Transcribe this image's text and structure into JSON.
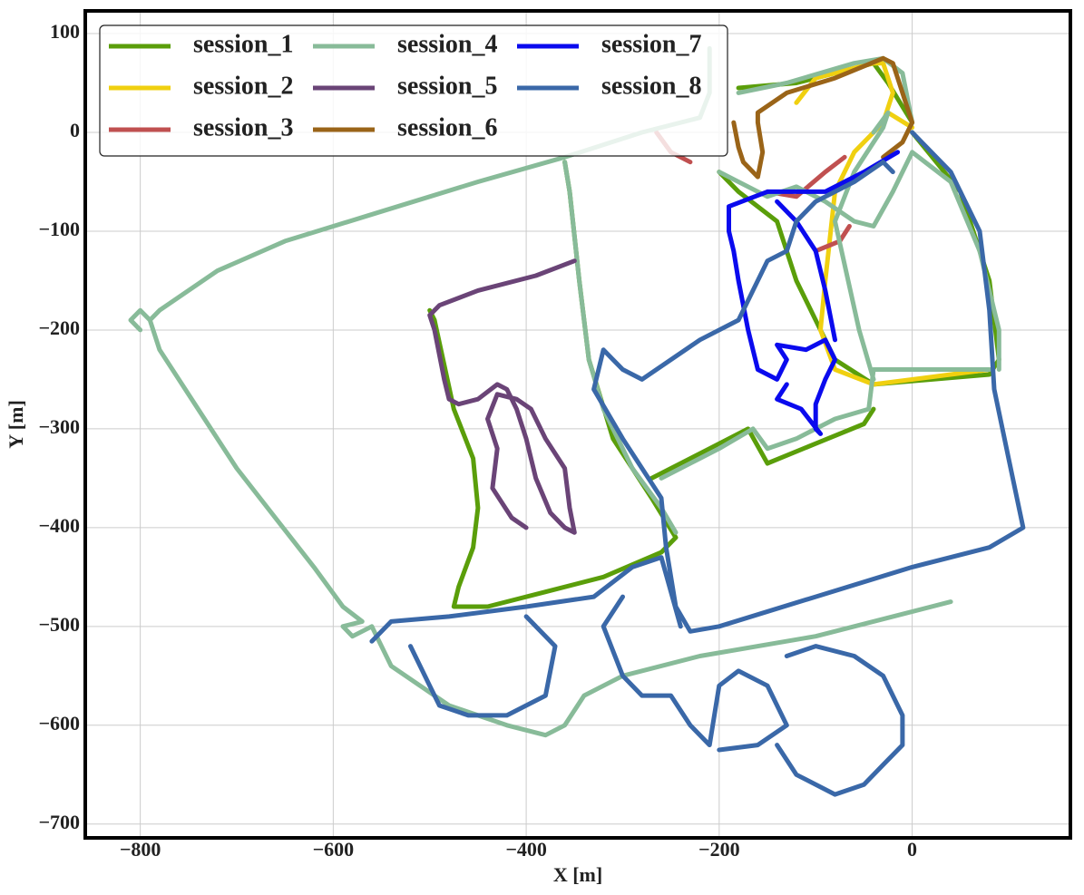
{
  "chart_data": {
    "type": "line",
    "xlabel": "X [m]",
    "ylabel": "Y [m]",
    "xlim": [
      -857,
      164
    ],
    "ylim": [
      -714,
      123
    ],
    "xticks": [
      {
        "value": -800,
        "label": "−800"
      },
      {
        "value": -600,
        "label": "−600"
      },
      {
        "value": -400,
        "label": "−400"
      },
      {
        "value": -200,
        "label": "−200"
      },
      0
    ],
    "yticks": [
      100,
      0,
      {
        "value": -100,
        "label": "−100"
      },
      {
        "value": -200,
        "label": "−200"
      },
      {
        "value": -300,
        "label": "−300"
      },
      {
        "value": -400,
        "label": "−400"
      },
      {
        "value": -500,
        "label": "−500"
      },
      {
        "value": -600,
        "label": "−600"
      },
      {
        "value": -700,
        "label": "−700"
      }
    ],
    "grid": true,
    "legend": "upper left",
    "series": [
      {
        "name": "session_1",
        "color": "#5a9e0a",
        "x": [
          -500,
          -495,
          -475,
          -455,
          -450,
          -455,
          -470,
          -475,
          -440,
          -380,
          -320,
          -260,
          -245,
          -270,
          -310,
          -335,
          -345,
          -355,
          -360,
          null,
          -270,
          -210,
          -170,
          -150,
          -100,
          -50,
          -40,
          null,
          0,
          50,
          80,
          90,
          80,
          -40,
          -80,
          -120,
          -140,
          -180,
          -200,
          null,
          -180,
          -120,
          -40,
          -25,
          0
        ],
        "values": [
          -180,
          -190,
          -280,
          -330,
          -380,
          -420,
          -460,
          -480,
          -480,
          -465,
          -450,
          -425,
          -410,
          -370,
          -310,
          -230,
          -150,
          -60,
          -30,
          null,
          -350,
          -320,
          -300,
          -335,
          -315,
          -295,
          -280,
          null,
          0,
          -60,
          -150,
          -230,
          -245,
          -255,
          -230,
          -150,
          -90,
          -60,
          -40,
          null,
          45,
          50,
          70,
          50,
          10
        ]
      },
      {
        "name": "session_2",
        "color": "#f0d010",
        "x": [
          -120,
          -100,
          -40,
          -30,
          -20,
          -30,
          -60,
          -80,
          -90,
          -95,
          -80,
          -40,
          80,
          null,
          -25,
          0
        ],
        "values": [
          30,
          55,
          70,
          70,
          40,
          10,
          -20,
          -60,
          -150,
          -200,
          -240,
          -255,
          -240,
          null,
          20,
          5
        ]
      },
      {
        "name": "session_3",
        "color": "#c05050",
        "x": [
          -150,
          -120,
          -90,
          -70,
          null,
          -265,
          -250,
          -230,
          null,
          -100,
          -75,
          -65
        ],
        "values": [
          -60,
          -65,
          -40,
          -25,
          null,
          0,
          -20,
          -30,
          null,
          -120,
          -110,
          -95
        ]
      },
      {
        "name": "session_4",
        "color": "#88bb99",
        "x": [
          -800,
          -810,
          -800,
          -790,
          -780,
          -720,
          -650,
          -550,
          -450,
          -360,
          -280,
          -220,
          -210,
          -210,
          null,
          -790,
          -780,
          -740,
          -700,
          -660,
          -620,
          -590,
          -570,
          -590,
          -580,
          -560,
          -540,
          -480,
          -420,
          -380,
          -360,
          -340,
          -300,
          -220,
          -100,
          -20,
          40,
          null,
          -360,
          -355,
          -345,
          -335,
          -320,
          -290,
          -260,
          -245,
          null,
          -260,
          -200,
          -165,
          -150,
          -120,
          -80,
          -45,
          -40,
          -20,
          80,
          null,
          -200,
          -150,
          -120,
          -90,
          -60,
          -40,
          -20,
          0,
          40,
          70,
          90,
          90,
          null,
          -180,
          -130,
          -60,
          -30,
          -10,
          0,
          null,
          -40,
          -55,
          -80,
          -60,
          -30,
          -25,
          -40
        ],
        "values": [
          -200,
          -190,
          -180,
          -190,
          -180,
          -140,
          -110,
          -80,
          -50,
          -25,
          0,
          15,
          40,
          85,
          null,
          -190,
          -220,
          -280,
          -340,
          -390,
          -440,
          -480,
          -495,
          -500,
          -510,
          -500,
          -540,
          -580,
          -600,
          -610,
          -600,
          -570,
          -550,
          -530,
          -510,
          -490,
          -475,
          null,
          -30,
          -60,
          -150,
          -230,
          -280,
          -340,
          -380,
          -405,
          null,
          -350,
          -320,
          -300,
          -320,
          -310,
          -290,
          -280,
          -240,
          -240,
          -240,
          null,
          -40,
          -65,
          -55,
          -70,
          -90,
          -95,
          -60,
          -20,
          -50,
          -120,
          -200,
          -240,
          null,
          40,
          50,
          70,
          75,
          60,
          10,
          null,
          -250,
          -200,
          -90,
          -40,
          5,
          20,
          0
        ]
      },
      {
        "name": "session_5",
        "color": "#6a4477",
        "x": [
          -350,
          -390,
          -450,
          -490,
          -500,
          -495,
          -485,
          -480,
          -470,
          -450,
          -430,
          -420,
          -410,
          -400,
          -390,
          -375,
          -360,
          -350,
          -355,
          -360,
          -380,
          -395,
          -410,
          -430,
          -440,
          -430,
          -435,
          -415,
          -400
        ],
        "values": [
          -130,
          -145,
          -160,
          -175,
          -185,
          -200,
          -250,
          -270,
          -275,
          -270,
          -255,
          -260,
          -280,
          -310,
          -350,
          -385,
          -400,
          -405,
          -380,
          -340,
          -310,
          -280,
          -270,
          -265,
          -290,
          -320,
          -360,
          -390,
          -400
        ]
      },
      {
        "name": "session_6",
        "color": "#9a6418",
        "x": [
          -185,
          -180,
          -175,
          -160,
          -155,
          -160,
          -160,
          -130,
          -80,
          -30,
          -20,
          -10,
          0,
          -10,
          -30
        ],
        "values": [
          10,
          -15,
          -30,
          -45,
          -20,
          10,
          20,
          40,
          55,
          75,
          70,
          40,
          10,
          -10,
          -25
        ]
      },
      {
        "name": "session_7",
        "color": "#0a0aee",
        "x": [
          -15,
          -50,
          -90,
          -120,
          -150,
          -190,
          -190,
          -185,
          -180,
          -170,
          -160,
          -140,
          -130,
          -140,
          -110,
          -90,
          -80,
          -90,
          -100,
          -100,
          -95,
          -115,
          -140,
          -130,
          null,
          -140,
          -120,
          -100,
          -90,
          -80
        ],
        "values": [
          -20,
          -40,
          -60,
          -60,
          -60,
          -75,
          -100,
          -120,
          -150,
          -200,
          -240,
          -250,
          -230,
          -215,
          -220,
          -210,
          -230,
          -250,
          -275,
          -300,
          -305,
          -280,
          -270,
          -255,
          null,
          -70,
          -90,
          -120,
          -160,
          -210
        ]
      },
      {
        "name": "session_8",
        "color": "#3a68a8",
        "x": [
          0,
          40,
          70,
          80,
          85,
          100,
          115,
          80,
          0,
          -100,
          -200,
          -230,
          -245,
          -255,
          -260,
          -300,
          -330,
          -320,
          -310,
          -300,
          -280,
          -220,
          -180,
          -170,
          -150,
          -130,
          -120,
          -100,
          -60,
          -30,
          -20,
          null,
          -560,
          -540,
          -480,
          -400,
          -330,
          -290,
          -260,
          -240,
          null,
          -300,
          -320,
          -300,
          -280,
          -250,
          -230,
          -210,
          -200,
          -180,
          -150,
          -130,
          -160,
          -200,
          null,
          -140,
          -120,
          -80,
          -50,
          -30,
          -10,
          -10,
          -30,
          -60,
          -100,
          -130,
          null,
          -520,
          -500,
          -490,
          -460,
          -420,
          -380,
          -370,
          -400
        ],
        "values": [
          0,
          -40,
          -100,
          -180,
          -260,
          -330,
          -400,
          -420,
          -440,
          -470,
          -500,
          -505,
          -480,
          -420,
          -370,
          -310,
          -260,
          -220,
          -230,
          -240,
          -250,
          -210,
          -190,
          -170,
          -130,
          -120,
          -90,
          -70,
          -50,
          -30,
          -40,
          null,
          -515,
          -495,
          -490,
          -480,
          -470,
          -440,
          -430,
          -500,
          null,
          -470,
          -500,
          -550,
          -570,
          -570,
          -600,
          -620,
          -560,
          -545,
          -560,
          -600,
          -620,
          -625,
          null,
          -620,
          -650,
          -670,
          -660,
          -640,
          -620,
          -590,
          -550,
          -530,
          -520,
          -530,
          null,
          -520,
          -560,
          -580,
          -590,
          -590,
          -570,
          -520,
          -490
        ]
      }
    ]
  }
}
